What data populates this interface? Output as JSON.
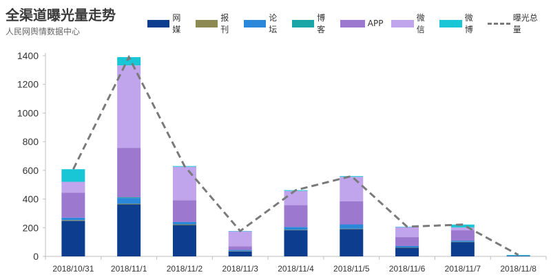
{
  "chart_data": {
    "type": "bar",
    "stacked": true,
    "title": "全渠道曝光量走势",
    "subtitle": "人民网舆情数据中心",
    "categories": [
      "2018/10/31",
      "2018/11/1",
      "2018/11/2",
      "2018/11/3",
      "2018/11/4",
      "2018/11/5",
      "2018/11/6",
      "2018/11/7",
      "2018/11/8"
    ],
    "ylim": [
      0,
      1400
    ],
    "yticks": [
      0,
      200,
      400,
      600,
      800,
      1000,
      1200,
      1400
    ],
    "legend_position": "top",
    "grid": false,
    "series": [
      {
        "name": "网媒",
        "color": "#0d3d8f",
        "values": [
          248,
          362,
          218,
          35,
          182,
          190,
          60,
          100,
          4
        ]
      },
      {
        "name": "报刊",
        "color": "#8c8a52",
        "values": [
          5,
          5,
          5,
          2,
          3,
          3,
          2,
          2,
          0
        ]
      },
      {
        "name": "论坛",
        "color": "#2a87d9",
        "values": [
          17,
          40,
          17,
          8,
          20,
          30,
          10,
          8,
          2
        ]
      },
      {
        "name": "博客",
        "color": "#1aa6a6",
        "values": [
          0,
          5,
          0,
          0,
          0,
          0,
          0,
          0,
          0
        ]
      },
      {
        "name": "APP",
        "color": "#9d78cf",
        "values": [
          175,
          345,
          152,
          25,
          152,
          162,
          62,
          72,
          0
        ]
      },
      {
        "name": "微信",
        "color": "#c0a4ec",
        "values": [
          75,
          575,
          233,
          105,
          100,
          170,
          70,
          20,
          0
        ]
      },
      {
        "name": "微博",
        "color": "#19c6d6",
        "values": [
          88,
          58,
          5,
          2,
          5,
          5,
          3,
          20,
          4
        ]
      }
    ],
    "line_series": {
      "name": "曝光总量",
      "color": "#7a7a7a",
      "style": "dashed",
      "values": [
        608,
        1390,
        630,
        177,
        462,
        560,
        207,
        222,
        10
      ]
    }
  }
}
